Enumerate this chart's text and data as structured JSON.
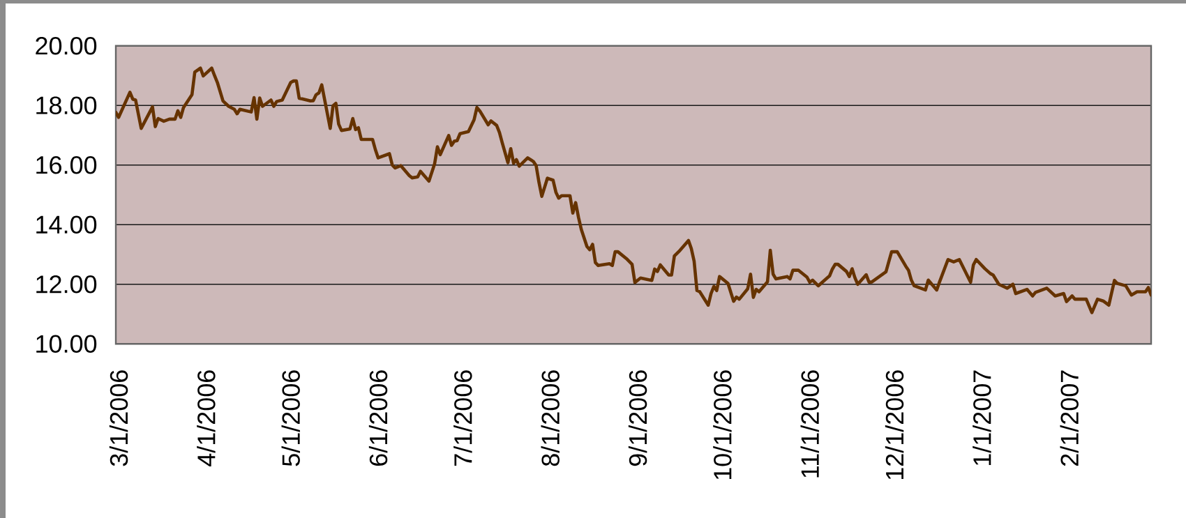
{
  "chart_data": {
    "type": "line",
    "x": [
      "2006-02-28",
      "2006-03-01",
      "2006-03-05",
      "2006-03-06",
      "2006-03-07",
      "2006-03-09",
      "2006-03-13",
      "2006-03-14",
      "2006-03-15",
      "2006-03-17",
      "2006-03-19",
      "2006-03-21",
      "2006-03-22",
      "2006-03-23",
      "2006-03-24",
      "2006-03-27",
      "2006-03-28",
      "2006-03-30",
      "2006-03-31",
      "2006-04-03",
      "2006-04-04",
      "2006-04-05",
      "2006-04-07",
      "2006-04-09",
      "2006-04-11",
      "2006-04-12",
      "2006-04-13",
      "2006-04-17",
      "2006-04-18",
      "2006-04-19",
      "2006-04-20",
      "2006-04-21",
      "2006-04-24",
      "2006-04-25",
      "2006-04-26",
      "2006-04-28",
      "2006-05-01",
      "2006-05-02",
      "2006-05-03",
      "2006-05-04",
      "2006-05-05",
      "2006-05-08",
      "2006-05-09",
      "2006-05-10",
      "2006-05-11",
      "2006-05-12",
      "2006-05-15",
      "2006-05-16",
      "2006-05-17",
      "2006-05-18",
      "2006-05-19",
      "2006-05-22",
      "2006-05-23",
      "2006-05-24",
      "2006-05-25",
      "2006-05-26",
      "2006-05-30",
      "2006-05-31",
      "2006-06-01",
      "2006-06-03",
      "2006-06-05",
      "2006-06-06",
      "2006-06-07",
      "2006-06-09",
      "2006-06-12",
      "2006-06-13",
      "2006-06-15",
      "2006-06-16",
      "2006-06-19",
      "2006-06-21",
      "2006-06-22",
      "2006-06-23",
      "2006-06-26",
      "2006-06-27",
      "2006-06-28",
      "2006-06-29",
      "2006-06-30",
      "2006-07-03",
      "2006-07-05",
      "2006-07-06",
      "2006-07-07",
      "2006-07-10",
      "2006-07-11",
      "2006-07-13",
      "2006-07-14",
      "2006-07-15",
      "2006-07-17",
      "2006-07-18",
      "2006-07-19",
      "2006-07-20",
      "2006-07-21",
      "2006-07-24",
      "2006-07-26",
      "2006-07-27",
      "2006-07-28",
      "2006-07-29",
      "2006-07-31",
      "2006-08-02",
      "2006-08-03",
      "2006-08-04",
      "2006-08-05",
      "2006-08-08",
      "2006-08-09",
      "2006-08-10",
      "2006-08-11",
      "2006-08-12",
      "2006-08-14",
      "2006-08-15",
      "2006-08-16",
      "2006-08-17",
      "2006-08-18",
      "2006-08-22",
      "2006-08-23",
      "2006-08-24",
      "2006-08-25",
      "2006-08-28",
      "2006-08-30",
      "2006-08-31",
      "2006-09-02",
      "2006-09-06",
      "2006-09-07",
      "2006-09-08",
      "2006-09-09",
      "2006-09-12",
      "2006-09-13",
      "2006-09-14",
      "2006-09-16",
      "2006-09-19",
      "2006-09-20",
      "2006-09-21",
      "2006-09-22",
      "2006-09-23",
      "2006-09-26",
      "2006-09-27",
      "2006-09-28",
      "2006-09-29",
      "2006-09-30",
      "2006-10-03",
      "2006-10-05",
      "2006-10-06",
      "2006-10-07",
      "2006-10-10",
      "2006-10-11",
      "2006-10-12",
      "2006-10-13",
      "2006-10-14",
      "2006-10-17",
      "2006-10-18",
      "2006-10-19",
      "2006-10-20",
      "2006-10-24",
      "2006-10-25",
      "2006-10-26",
      "2006-10-28",
      "2006-10-31",
      "2006-11-01",
      "2006-11-02",
      "2006-11-04",
      "2006-11-07",
      "2006-11-08",
      "2006-11-09",
      "2006-11-10",
      "2006-11-11",
      "2006-11-14",
      "2006-11-15",
      "2006-11-16",
      "2006-11-17",
      "2006-11-18",
      "2006-11-21",
      "2006-11-22",
      "2006-11-23",
      "2006-11-28",
      "2006-11-30",
      "2006-12-02",
      "2006-12-05",
      "2006-12-06",
      "2006-12-07",
      "2006-12-08",
      "2006-12-12",
      "2006-12-13",
      "2006-12-16",
      "2006-12-17",
      "2006-12-20",
      "2006-12-22",
      "2006-12-24",
      "2006-12-28",
      "2006-12-29",
      "2006-12-30",
      "2007-01-02",
      "2007-01-04",
      "2007-01-05",
      "2007-01-07",
      "2007-01-10",
      "2007-01-12",
      "2007-01-13",
      "2007-01-17",
      "2007-01-19",
      "2007-01-20",
      "2007-01-24",
      "2007-01-27",
      "2007-01-30",
      "2007-01-31",
      "2007-02-02",
      "2007-02-03",
      "2007-02-07",
      "2007-02-09",
      "2007-02-11",
      "2007-02-13",
      "2007-02-15",
      "2007-02-17",
      "2007-02-18",
      "2007-02-21",
      "2007-02-23",
      "2007-02-25",
      "2007-02-28",
      "2007-03-01",
      "2007-03-02"
    ],
    "series": [
      {
        "color": "#663300",
        "values": [
          17.77,
          17.6,
          18.44,
          18.21,
          18.18,
          17.23,
          17.95,
          17.29,
          17.56,
          17.47,
          17.54,
          17.54,
          17.82,
          17.6,
          17.93,
          18.36,
          19.12,
          19.25,
          18.99,
          19.25,
          19.0,
          18.77,
          18.15,
          17.97,
          17.87,
          17.72,
          17.87,
          17.78,
          18.26,
          17.54,
          18.25,
          17.97,
          18.18,
          17.97,
          18.13,
          18.18,
          18.77,
          18.82,
          18.82,
          18.24,
          18.22,
          18.15,
          18.16,
          18.36,
          18.42,
          18.69,
          17.23,
          17.99,
          18.07,
          17.37,
          17.16,
          17.21,
          17.56,
          17.19,
          17.25,
          16.86,
          16.86,
          16.52,
          16.24,
          16.31,
          16.38,
          16.0,
          15.9,
          15.98,
          15.65,
          15.57,
          15.6,
          15.79,
          15.46,
          16.04,
          16.61,
          16.35,
          16.99,
          16.66,
          16.8,
          16.82,
          17.05,
          17.12,
          17.52,
          17.93,
          17.82,
          17.35,
          17.48,
          17.33,
          17.09,
          16.74,
          16.08,
          16.55,
          16.06,
          16.18,
          15.96,
          16.24,
          16.12,
          15.98,
          15.42,
          14.95,
          15.56,
          15.49,
          15.09,
          14.89,
          14.97,
          14.97,
          14.39,
          14.74,
          14.25,
          13.84,
          13.27,
          13.16,
          13.34,
          12.73,
          12.63,
          12.69,
          12.63,
          13.09,
          13.09,
          12.86,
          12.67,
          12.06,
          12.21,
          12.13,
          12.51,
          12.43,
          12.65,
          12.31,
          12.31,
          12.95,
          13.14,
          13.47,
          13.2,
          12.77,
          11.79,
          11.75,
          11.3,
          11.69,
          11.93,
          11.79,
          12.26,
          12.03,
          11.43,
          11.57,
          11.5,
          11.85,
          12.34,
          11.56,
          11.83,
          11.75,
          12.08,
          13.14,
          12.34,
          12.18,
          12.26,
          12.18,
          12.47,
          12.47,
          12.24,
          12.07,
          12.14,
          11.95,
          12.2,
          12.28,
          12.51,
          12.67,
          12.67,
          12.43,
          12.26,
          12.52,
          12.22,
          12.0,
          12.32,
          12.07,
          12.08,
          12.42,
          13.09,
          13.09,
          12.61,
          12.47,
          12.14,
          11.95,
          11.81,
          12.14,
          11.81,
          12.08,
          12.83,
          12.75,
          12.83,
          12.07,
          12.65,
          12.83,
          12.53,
          12.36,
          12.31,
          12.0,
          11.87,
          12.0,
          11.69,
          11.83,
          11.61,
          11.73,
          11.87,
          11.61,
          11.69,
          11.42,
          11.61,
          11.5,
          11.5,
          11.05,
          11.5,
          11.44,
          11.3,
          12.13,
          12.03,
          11.95,
          11.64,
          11.75,
          11.75,
          11.89,
          11.64
        ]
      }
    ],
    "xlim": [
      "2006-02-28",
      "2007-03-02"
    ],
    "xticks": [
      {
        "value": "2006-03-01",
        "label": "3/1/2006"
      },
      {
        "value": "2006-04-01",
        "label": "4/1/2006"
      },
      {
        "value": "2006-05-01",
        "label": "5/1/2006"
      },
      {
        "value": "2006-06-01",
        "label": "6/1/2006"
      },
      {
        "value": "2006-07-01",
        "label": "7/1/2006"
      },
      {
        "value": "2006-08-01",
        "label": "8/1/2006"
      },
      {
        "value": "2006-09-01",
        "label": "9/1/2006"
      },
      {
        "value": "2006-10-01",
        "label": "10/1/2006"
      },
      {
        "value": "2006-11-01",
        "label": "11/1/2006"
      },
      {
        "value": "2006-12-01",
        "label": "12/1/2006"
      },
      {
        "value": "2007-01-01",
        "label": "1/1/2007"
      },
      {
        "value": "2007-02-01",
        "label": "2/1/2007"
      }
    ],
    "ylim": [
      10,
      20
    ],
    "yticks": [
      {
        "value": 10,
        "label": "10.00"
      },
      {
        "value": 12,
        "label": "12.00"
      },
      {
        "value": 14,
        "label": "14.00"
      },
      {
        "value": 16,
        "label": "16.00"
      },
      {
        "value": 18,
        "label": "18.00"
      },
      {
        "value": 20,
        "label": "20.00"
      }
    ],
    "grid": "y",
    "line_style": "solid"
  }
}
